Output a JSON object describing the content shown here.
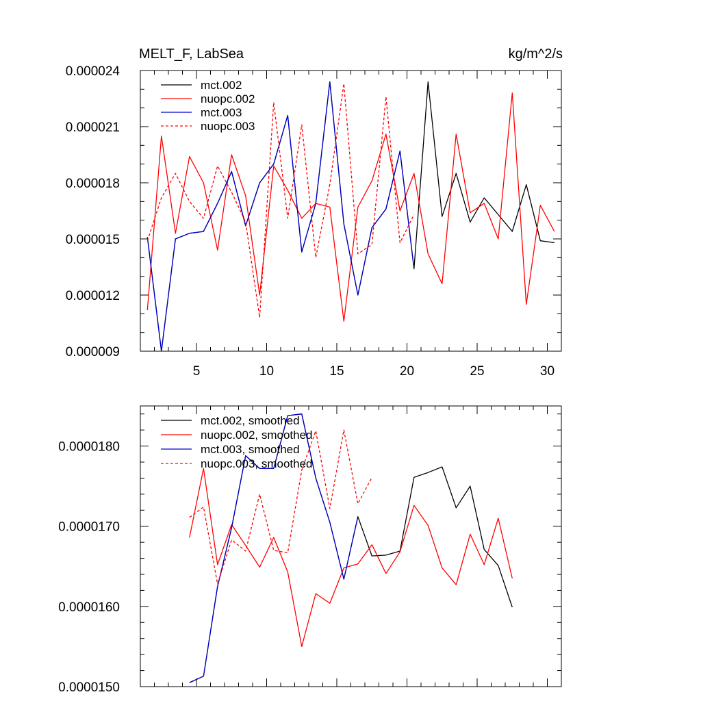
{
  "chart_data": [
    {
      "type": "line",
      "title_left": "MELT_F, LabSea",
      "title_right": "kg/m^2/s",
      "xlim": [
        1,
        31
      ],
      "ylim": [
        9e-06,
        2.4e-05
      ],
      "x_ticks": [
        5,
        10,
        15,
        20,
        25,
        30
      ],
      "x_tick_labels": [
        "5",
        "10",
        "15",
        "20",
        "25",
        "30"
      ],
      "x_minor_step": 1,
      "y_ticks": [
        9e-06,
        1.2e-05,
        1.5e-05,
        1.8e-05,
        2.1e-05,
        2.4e-05
      ],
      "y_tick_labels": [
        "0.000009",
        "0.000012",
        "0.000015",
        "0.000018",
        "0.000021",
        "0.000024"
      ],
      "y_minor_step": 1e-06,
      "legend_position": "top-left",
      "series": [
        {
          "name": "mct.002",
          "color": "#000000",
          "dash": "solid",
          "x": [
            1.5,
            2.5,
            3.5,
            4.5,
            5.5,
            6.5,
            7.5,
            8.5,
            9.5,
            10.5,
            11.5,
            12.5,
            13.5,
            14.5,
            15.5,
            16.5,
            17.5,
            18.5,
            19.5,
            20.5,
            21.5,
            22.5,
            23.5,
            24.5,
            25.5,
            26.5,
            27.5,
            28.5,
            29.5,
            30.5
          ],
          "values": [
            1.51e-05,
            9e-06,
            1.5e-05,
            1.53e-05,
            1.54e-05,
            1.69e-05,
            1.86e-05,
            1.57e-05,
            1.8e-05,
            1.9e-05,
            2.16e-05,
            1.43e-05,
            1.69e-05,
            2.34e-05,
            1.58e-05,
            1.2e-05,
            1.56e-05,
            1.66e-05,
            1.97e-05,
            1.34e-05,
            2.34e-05,
            1.62e-05,
            1.85e-05,
            1.59e-05,
            1.72e-05,
            1.63e-05,
            1.54e-05,
            1.79e-05,
            1.49e-05,
            1.48e-05
          ]
        },
        {
          "name": "nuopc.002",
          "color": "#ff0000",
          "dash": "solid",
          "x": [
            1.5,
            2.5,
            3.5,
            4.5,
            5.5,
            6.5,
            7.5,
            8.5,
            9.5,
            10.5,
            11.5,
            12.5,
            13.5,
            14.5,
            15.5,
            16.5,
            17.5,
            18.5,
            19.5,
            20.5,
            21.5,
            22.5,
            23.5,
            24.5,
            25.5,
            26.5,
            27.5,
            28.5,
            29.5,
            30.5
          ],
          "values": [
            1.12e-05,
            2.05e-05,
            1.53e-05,
            1.94e-05,
            1.8e-05,
            1.44e-05,
            1.95e-05,
            1.73e-05,
            1.2e-05,
            1.89e-05,
            1.76e-05,
            1.61e-05,
            1.69e-05,
            1.67e-05,
            1.06e-05,
            1.67e-05,
            1.81e-05,
            2.06e-05,
            1.65e-05,
            1.85e-05,
            1.42e-05,
            1.26e-05,
            2.06e-05,
            1.64e-05,
            1.69e-05,
            1.5e-05,
            2.28e-05,
            1.15e-05,
            1.68e-05,
            1.54e-05
          ]
        },
        {
          "name": "mct.003",
          "color": "#0000cc",
          "dash": "solid",
          "x": [
            1.5,
            2.5,
            3.5,
            4.5,
            5.5,
            6.5,
            7.5,
            8.5,
            9.5,
            10.5,
            11.5,
            12.5,
            13.5,
            14.5,
            15.5,
            16.5,
            17.5,
            18.5,
            19.5,
            20.5
          ],
          "values": [
            1.51e-05,
            9e-06,
            1.5e-05,
            1.53e-05,
            1.54e-05,
            1.69e-05,
            1.86e-05,
            1.57e-05,
            1.8e-05,
            1.9e-05,
            2.16e-05,
            1.43e-05,
            1.69e-05,
            2.34e-05,
            1.58e-05,
            1.2e-05,
            1.56e-05,
            1.66e-05,
            1.97e-05,
            1.34e-05
          ]
        },
        {
          "name": "nuopc.003",
          "color": "#ff0000",
          "dash": "dashed",
          "x": [
            1.5,
            2.5,
            3.5,
            4.5,
            5.5,
            6.5,
            7.5,
            8.5,
            9.5,
            10.5,
            11.5,
            12.5,
            13.5,
            14.5,
            15.5,
            16.5,
            17.5,
            18.5,
            19.5,
            20.5
          ],
          "values": [
            1.49e-05,
            1.72e-05,
            1.85e-05,
            1.7e-05,
            1.61e-05,
            1.89e-05,
            1.75e-05,
            1.59e-05,
            1.08e-05,
            2.23e-05,
            1.61e-05,
            2.11e-05,
            1.4e-05,
            1.79e-05,
            2.33e-05,
            1.42e-05,
            1.47e-05,
            2.26e-05,
            1.48e-05,
            1.63e-05
          ]
        }
      ]
    },
    {
      "type": "line",
      "xlim": [
        1,
        31
      ],
      "ylim": [
        1.5e-05,
        1.85e-05
      ],
      "x_ticks": [
        5,
        10,
        15,
        20,
        25,
        30
      ],
      "x_minor_step": 1,
      "y_ticks": [
        1.5e-05,
        1.6e-05,
        1.7e-05,
        1.8e-05
      ],
      "y_tick_labels": [
        "0.0000150",
        "0.0000160",
        "0.0000170",
        "0.0000180"
      ],
      "y_minor_step": 2e-07,
      "legend_position": "top-left",
      "series": [
        {
          "name": "mct.002, smoothed",
          "color": "#000000",
          "dash": "solid",
          "x": [
            4.5,
            5.5,
            6.5,
            7.5,
            8.5,
            9.5,
            10.5,
            11.5,
            12.5,
            13.5,
            14.5,
            15.5,
            16.5,
            17.5,
            18.5,
            19.5,
            20.5,
            21.5,
            22.5,
            23.5,
            24.5,
            25.5,
            26.5,
            27.5
          ],
          "values": [
            1.505e-05,
            1.513e-05,
            1.625e-05,
            1.698e-05,
            1.788e-05,
            1.772e-05,
            1.772e-05,
            1.838e-05,
            1.84e-05,
            1.76e-05,
            1.705e-05,
            1.634e-05,
            1.712e-05,
            1.663e-05,
            1.664e-05,
            1.669e-05,
            1.761e-05,
            1.767e-05,
            1.774e-05,
            1.723e-05,
            1.75e-05,
            1.671e-05,
            1.651e-05,
            1.599e-05
          ]
        },
        {
          "name": "nuopc.002, smoothed",
          "color": "#ff0000",
          "dash": "solid",
          "x": [
            4.5,
            5.5,
            6.5,
            7.5,
            8.5,
            9.5,
            10.5,
            11.5,
            12.5,
            13.5,
            14.5,
            15.5,
            16.5,
            17.5,
            18.5,
            19.5,
            20.5,
            21.5,
            22.5,
            23.5,
            24.5,
            25.5,
            26.5,
            27.5
          ],
          "values": [
            1.686e-05,
            1.772e-05,
            1.652e-05,
            1.702e-05,
            1.676e-05,
            1.649e-05,
            1.686e-05,
            1.643e-05,
            1.55e-05,
            1.616e-05,
            1.604e-05,
            1.648e-05,
            1.653e-05,
            1.677e-05,
            1.641e-05,
            1.668e-05,
            1.726e-05,
            1.701e-05,
            1.648e-05,
            1.627e-05,
            1.69e-05,
            1.652e-05,
            1.71e-05,
            1.635e-05
          ]
        },
        {
          "name": "mct.003, smoothed",
          "color": "#0000cc",
          "dash": "solid",
          "x": [
            4.5,
            5.5,
            6.5,
            7.5,
            8.5,
            9.5,
            10.5,
            11.5,
            12.5,
            13.5,
            14.5,
            15.5,
            16.5
          ],
          "values": [
            1.505e-05,
            1.513e-05,
            1.625e-05,
            1.698e-05,
            1.788e-05,
            1.772e-05,
            1.772e-05,
            1.838e-05,
            1.84e-05,
            1.76e-05,
            1.705e-05,
            1.634e-05,
            1.712e-05
          ]
        },
        {
          "name": "nuopc.003, smoothed",
          "color": "#ff0000",
          "dash": "dashed",
          "x": [
            4.5,
            5.5,
            6.5,
            7.5,
            8.5,
            9.5,
            10.5,
            11.5,
            12.5,
            13.5,
            14.5,
            15.5,
            16.5,
            17.5
          ],
          "values": [
            1.711e-05,
            1.724e-05,
            1.628e-05,
            1.683e-05,
            1.669e-05,
            1.74e-05,
            1.67e-05,
            1.667e-05,
            1.77e-05,
            1.819e-05,
            1.722e-05,
            1.82e-05,
            1.728e-05,
            1.761e-05
          ]
        }
      ]
    }
  ]
}
